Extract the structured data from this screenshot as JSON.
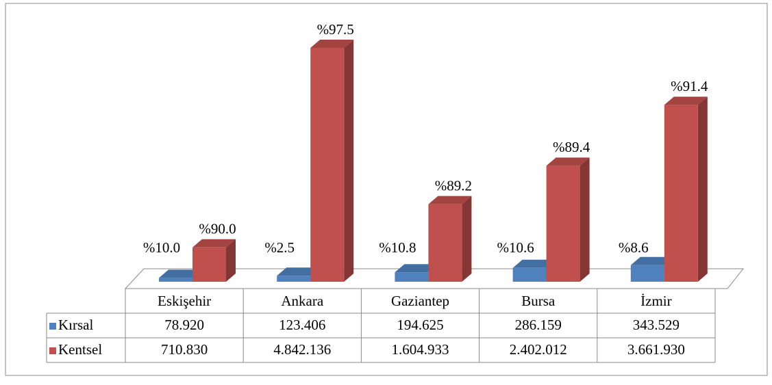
{
  "chart_data": {
    "type": "bar3d",
    "categories": [
      "Eskişehir",
      "Ankara",
      "Gaziantep",
      "Bursa",
      "İzmir"
    ],
    "series": [
      {
        "name": "Kırsal",
        "color": "#4f81bd",
        "values": [
          78920,
          123406,
          194625,
          286159,
          343529
        ],
        "value_labels": [
          "78.920",
          "123.406",
          "194.625",
          "286.159",
          "343.529"
        ],
        "shares": [
          10.0,
          2.5,
          10.8,
          10.6,
          8.6
        ],
        "share_labels": [
          "%10.0",
          "%2.5",
          "%10.8",
          "%10.6",
          "%8.6"
        ]
      },
      {
        "name": "Kentsel",
        "color": "#c0504d",
        "values": [
          710830,
          4842136,
          1604933,
          2402012,
          3661930
        ],
        "value_labels": [
          "710.830",
          "4.842.136",
          "1.604.933",
          "2.402.012",
          "3.661.930"
        ],
        "shares": [
          90.0,
          97.5,
          89.2,
          89.4,
          91.4
        ],
        "share_labels": [
          "%90.0",
          "%97.5",
          "%89.2",
          "%89.4",
          "%91.4"
        ]
      }
    ]
  }
}
